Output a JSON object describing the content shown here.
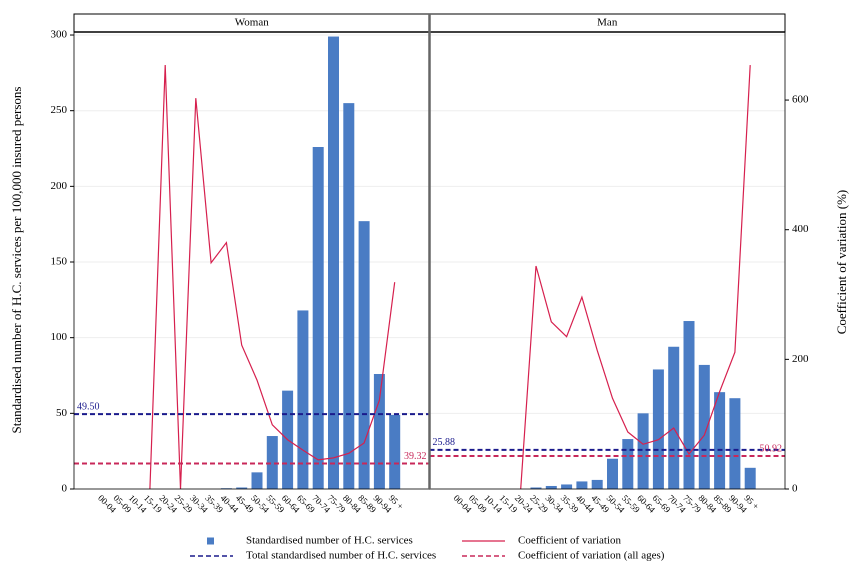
{
  "chart_data": {
    "type": "bar",
    "y_label": "Standardised number of H.C. services per 100,000 insured persons",
    "y2_label": "Coefficient of variation (%)",
    "categories": [
      "00-04",
      "05-09",
      "10-14",
      "15-19",
      "20-24",
      "25-29",
      "30-34",
      "35-39",
      "40-44",
      "45-49",
      "50-54",
      "55-59",
      "60-64",
      "65-69",
      "70-74",
      "75-79",
      "80-84",
      "85-89",
      "90-94",
      "95 +"
    ],
    "ylim": [
      0,
      302
    ],
    "yticks": [
      0,
      50,
      100,
      150,
      200,
      250,
      300
    ],
    "y2lim": [
      0,
      705
    ],
    "y2ticks": [
      0,
      200,
      400,
      600
    ],
    "grid": true,
    "series": [
      {
        "name": "Standardised number of H.C. services",
        "color": "#4a7cc4",
        "type": "bar"
      },
      {
        "name": "Coefficient of variation",
        "color": "#d6204e",
        "type": "line",
        "axis": "y2"
      },
      {
        "name": "Total standardised number of H.C. services",
        "color": "#1a1a8c",
        "type": "hline"
      },
      {
        "name": "Coefficient of variation (all ages)",
        "color": "#c8285a",
        "type": "hline",
        "axis": "y2"
      }
    ],
    "panels": [
      {
        "title": "Woman",
        "values": [
          [
            0,
            0,
            0,
            0,
            0,
            0,
            0,
            0,
            0.5,
            1,
            11,
            35,
            65,
            118,
            226,
            299,
            255,
            177,
            76,
            49
          ],
          [
            null,
            null,
            null,
            0,
            654,
            0,
            603,
            349,
            380,
            222,
            168,
            99,
            76,
            60,
            45,
            48,
            55,
            71,
            137,
            319
          ],
          49.5,
          39.32
        ],
        "value_labels": [
          null,
          null,
          "49.50",
          "39.32"
        ]
      },
      {
        "title": "Man",
        "values": [
          [
            0,
            0,
            0,
            0,
            0,
            1,
            2,
            3,
            5,
            6,
            20,
            33,
            50,
            79,
            94,
            111,
            82,
            64,
            60,
            14
          ],
          [
            null,
            null,
            null,
            null,
            0,
            344,
            258,
            235,
            296,
            214,
            140,
            88,
            69,
            76,
            94,
            54,
            83,
            150,
            211,
            654
          ],
          25.88,
          50.92
        ],
        "value_labels": [
          null,
          null,
          "25.88",
          "50.92"
        ]
      }
    ]
  }
}
